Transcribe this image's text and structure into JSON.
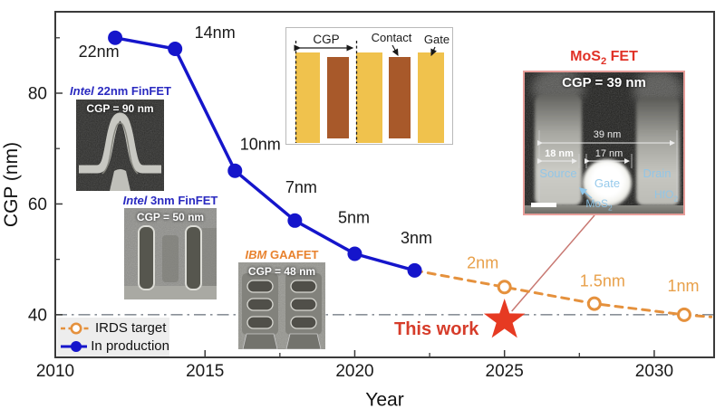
{
  "chart_data": {
    "type": "line",
    "title": "",
    "xlabel": "Year",
    "ylabel": "CGP (nm)",
    "xlim": [
      2010,
      2032
    ],
    "ylim": [
      32.3,
      94.7
    ],
    "x_major_ticks": [
      2010,
      2015,
      2020,
      2025,
      2030
    ],
    "x_minor_ticks": [
      2012.5,
      2017.5,
      2022.5,
      2027.5
    ],
    "y_major_ticks": [
      40,
      60,
      80
    ],
    "y_minor_ticks": [
      50,
      70,
      90
    ],
    "grid": "off",
    "legend_position": "lower-left",
    "reference_line": {
      "y": 40,
      "color": "#8a9099"
    },
    "series": [
      {
        "name": "IRDS target",
        "color": "#e5913d",
        "label_color": "#e8a04a",
        "style": "dashed",
        "marker": "open-circle",
        "points": [
          {
            "x": 2022,
            "y": 48,
            "marker": false
          },
          {
            "x": 2025,
            "y": 45,
            "label": "2nm",
            "label_dx": -24,
            "label_dy": -21
          },
          {
            "x": 2028,
            "y": 42,
            "label": "1.5nm",
            "label_dx": 9,
            "label_dy": -19
          },
          {
            "x": 2031,
            "y": 40,
            "label": "1nm",
            "label_dx": -1,
            "label_dy": -26
          },
          {
            "x": 2031.9,
            "y": 39.6,
            "marker": false
          }
        ]
      },
      {
        "name": "In production",
        "color": "#1515cb",
        "label_color": "#1a1a1a",
        "style": "solid",
        "marker": "filled-circle",
        "points": [
          {
            "x": 2012,
            "y": 90,
            "label": "22nm",
            "label_dx": -18,
            "label_dy": 21
          },
          {
            "x": 2014,
            "y": 88,
            "label": "14nm",
            "label_dx": 44,
            "label_dy": -12
          },
          {
            "x": 2016,
            "y": 66,
            "label": "10nm",
            "label_dx": 28,
            "label_dy": -23
          },
          {
            "x": 2018,
            "y": 57,
            "label": "7nm",
            "label_dx": 7,
            "label_dy": -31
          },
          {
            "x": 2020,
            "y": 51,
            "label": "5nm",
            "label_dx": -1,
            "label_dy": -34
          },
          {
            "x": 2022,
            "y": 48,
            "label": "3nm",
            "label_dx": 2,
            "label_dy": -30
          }
        ]
      }
    ],
    "highlight": {
      "label": "This work",
      "x": 2025,
      "y": 39,
      "marker": "star",
      "color": "#e63a22",
      "label_color": "#d63c2a",
      "label_dx": -75,
      "label_dy": 16
    },
    "connector": {
      "color": "#c87872"
    },
    "axis_color": "#3a3a3a",
    "tick_label_color": "#1a1a1a"
  },
  "legend": {
    "items": [
      {
        "label": "IRDS target"
      },
      {
        "label": "In production"
      }
    ]
  },
  "insets": {
    "intel_22nm": {
      "brand": "Intel",
      "title_rest": " 22nm FinFET",
      "caption": "CGP = 90 nm",
      "title_color": "#2a2ac0"
    },
    "intel_3nm": {
      "brand": "Intel",
      "title_rest": " 3nm FinFET",
      "caption": "CGP = 50 nm",
      "title_color": "#2a2ac0"
    },
    "ibm_gaafet": {
      "brand": "IBM",
      "title_rest": " GAAFET",
      "caption": "CGP = 48 nm",
      "title_color": "#e8822e"
    },
    "cgp_schematic": {
      "cgp_label": "CGP",
      "contact_label": "Contact",
      "gate_label": "Gate",
      "gate_color": "#f0c24d",
      "contact_color": "#a8592a"
    },
    "mos2_fet": {
      "title_pre": "MoS",
      "title_sub": "2",
      "title_post": " FET",
      "title_color": "#e03227",
      "caption": "CGP = 39 nm",
      "dim_total": "39 nm",
      "dim_source": "18 nm",
      "dim_gate": "17 nm",
      "source_label": "Source",
      "gate_label": "Gate",
      "drain_label": "Drain",
      "mos2_pre": "MoS",
      "mos2_sub": "2",
      "hfo2_pre": "HfO",
      "hfo2_sub": "2",
      "label_color": "#8ec6ea",
      "border_color": "#e79d99"
    }
  }
}
